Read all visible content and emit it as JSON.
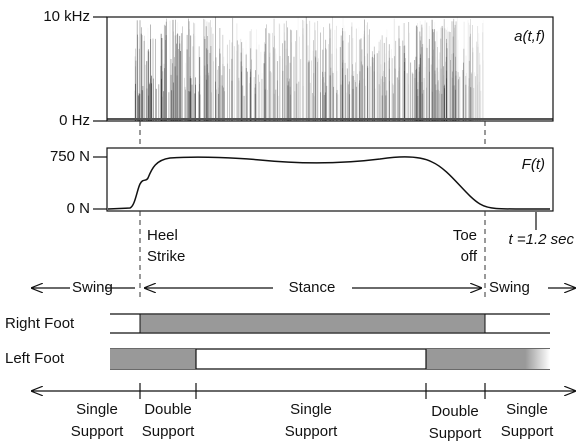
{
  "spectrogram": {
    "label": "a(t,f)",
    "ticks": [
      "10 kHz",
      "0 Hz"
    ]
  },
  "force": {
    "label": "F(t)",
    "ticks": [
      "750 N",
      "0 N"
    ],
    "end_label": "t =1.2 sec"
  },
  "events": {
    "heel_strike": [
      "Heel",
      "Strike"
    ],
    "toe_off": [
      "Toe",
      "off"
    ]
  },
  "phases": {
    "swing_left": "Swing",
    "stance": "Stance",
    "swing_right": "Swing"
  },
  "feet": {
    "right": "Right Foot",
    "left": "Left Foot"
  },
  "support": [
    [
      "Single",
      "Support"
    ],
    [
      "Double",
      "Support"
    ],
    [
      "Single",
      "Support"
    ],
    [
      "Double",
      "Support"
    ],
    [
      "Single",
      "Support"
    ]
  ]
}
